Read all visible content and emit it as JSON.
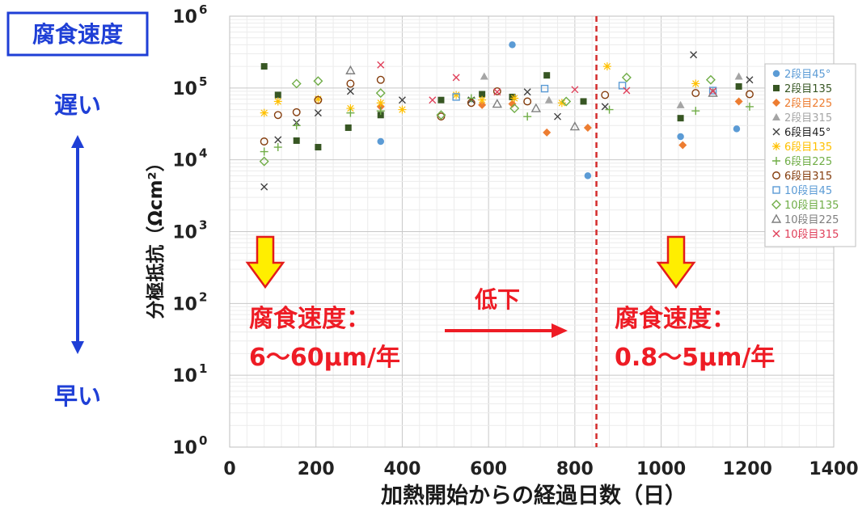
{
  "chart_data": {
    "type": "scatter",
    "title": "",
    "xlabel": "加熱開始からの経過日数（日）",
    "ylabel": "分極抵抗（Ωcm²）",
    "xlim": [
      0,
      1400
    ],
    "ylim": [
      1,
      1000000
    ],
    "y_scale": "log",
    "grid": true,
    "legend_position": "right",
    "x_ticks": [
      "0",
      "200",
      "400",
      "600",
      "800",
      "1000",
      "1200",
      "1400"
    ],
    "y_ticks": [
      {
        "base": "10",
        "exp": "0",
        "value": 1
      },
      {
        "base": "10",
        "exp": "1",
        "value": 10
      },
      {
        "base": "10",
        "exp": "2",
        "value": 100
      },
      {
        "base": "10",
        "exp": "3",
        "value": 1000
      },
      {
        "base": "10",
        "exp": "4",
        "value": 10000
      },
      {
        "base": "10",
        "exp": "5",
        "value": 100000
      },
      {
        "base": "10",
        "exp": "6",
        "value": 1000000
      }
    ],
    "vertical_line_x": 850,
    "series": [
      {
        "name": "2段目45°",
        "marker": "circle-filled",
        "color": "#5b9bd5",
        "points": [
          [
            350,
            18000
          ],
          [
            655,
            400000
          ],
          [
            830,
            6000
          ],
          [
            1045,
            21000
          ],
          [
            1175,
            27000
          ]
        ]
      },
      {
        "name": "2段目135",
        "marker": "square-filled",
        "color": "#375623",
        "points": [
          [
            80,
            200000
          ],
          [
            112,
            80000
          ],
          [
            155,
            18500
          ],
          [
            205,
            15000
          ],
          [
            275,
            28000
          ],
          [
            350,
            42000
          ],
          [
            490,
            68000
          ],
          [
            585,
            82000
          ],
          [
            655,
            75000
          ],
          [
            735,
            150000
          ],
          [
            820,
            65000
          ],
          [
            1045,
            38000
          ],
          [
            1180,
            105000
          ]
        ]
      },
      {
        "name": "2段目225",
        "marker": "diamond-filled",
        "color": "#ed7d31",
        "points": [
          [
            350,
            55000
          ],
          [
            585,
            58000
          ],
          [
            655,
            60000
          ],
          [
            735,
            24000
          ],
          [
            830,
            28000
          ],
          [
            1050,
            16000
          ],
          [
            1180,
            65000
          ]
        ]
      },
      {
        "name": "2段目315",
        "marker": "triangle-filled",
        "color": "#a5a5a5",
        "points": [
          [
            590,
            145000
          ],
          [
            740,
            68000
          ],
          [
            1045,
            58000
          ],
          [
            1180,
            145000
          ]
        ]
      },
      {
        "name": "6段目45°",
        "marker": "x",
        "color": "#404040",
        "points": [
          [
            80,
            4200
          ],
          [
            112,
            19000
          ],
          [
            155,
            33000
          ],
          [
            205,
            45000
          ],
          [
            280,
            90000
          ],
          [
            400,
            68000
          ],
          [
            560,
            68000
          ],
          [
            690,
            88000
          ],
          [
            760,
            40000
          ],
          [
            870,
            55000
          ],
          [
            1075,
            290000
          ],
          [
            1205,
            130000
          ]
        ]
      },
      {
        "name": "6段目135",
        "marker": "asterisk",
        "color": "#ffc000",
        "points": [
          [
            80,
            45000
          ],
          [
            112,
            65000
          ],
          [
            205,
            70000
          ],
          [
            280,
            52000
          ],
          [
            350,
            62000
          ],
          [
            400,
            50000
          ],
          [
            525,
            80000
          ],
          [
            585,
            68000
          ],
          [
            660,
            72000
          ],
          [
            770,
            62000
          ],
          [
            875,
            200000
          ],
          [
            1080,
            115000
          ]
        ]
      },
      {
        "name": "6段目225",
        "marker": "plus",
        "color": "#70ad47",
        "points": [
          [
            80,
            13000
          ],
          [
            112,
            15000
          ],
          [
            155,
            30000
          ],
          [
            280,
            45000
          ],
          [
            350,
            48000
          ],
          [
            560,
            72000
          ],
          [
            690,
            40000
          ],
          [
            880,
            50000
          ],
          [
            1080,
            48000
          ],
          [
            1205,
            55000
          ]
        ]
      },
      {
        "name": "6段目315",
        "marker": "circle-open",
        "color": "#843c0c",
        "points": [
          [
            80,
            18000
          ],
          [
            112,
            42000
          ],
          [
            155,
            46000
          ],
          [
            205,
            68000
          ],
          [
            280,
            115000
          ],
          [
            350,
            130000
          ],
          [
            490,
            40000
          ],
          [
            560,
            62000
          ],
          [
            620,
            90000
          ],
          [
            690,
            65000
          ],
          [
            870,
            80000
          ],
          [
            1080,
            85000
          ],
          [
            1205,
            82000
          ]
        ]
      },
      {
        "name": "10段目45",
        "marker": "square-open",
        "color": "#5b9bd5",
        "points": [
          [
            525,
            75000
          ],
          [
            730,
            98000
          ],
          [
            910,
            108000
          ],
          [
            1120,
            92000
          ]
        ]
      },
      {
        "name": "10段目135",
        "marker": "diamond-open",
        "color": "#70ad47",
        "points": [
          [
            80,
            9500
          ],
          [
            155,
            115000
          ],
          [
            205,
            125000
          ],
          [
            350,
            85000
          ],
          [
            490,
            42000
          ],
          [
            660,
            52000
          ],
          [
            780,
            65000
          ],
          [
            920,
            140000
          ],
          [
            1115,
            130000
          ]
        ]
      },
      {
        "name": "10段目225",
        "marker": "triangle-open",
        "color": "#7f7f7f",
        "points": [
          [
            280,
            175000
          ],
          [
            620,
            60000
          ],
          [
            710,
            52000
          ],
          [
            800,
            29000
          ],
          [
            1120,
            85000
          ]
        ]
      },
      {
        "name": "10段目315",
        "marker": "x",
        "color": "#e0405a",
        "points": [
          [
            350,
            210000
          ],
          [
            470,
            68000
          ],
          [
            525,
            140000
          ],
          [
            620,
            88000
          ],
          [
            800,
            95000
          ],
          [
            920,
            92000
          ],
          [
            1120,
            90000
          ]
        ]
      }
    ]
  },
  "annotations": {
    "corrosion_box_label": "腐食速度",
    "slow_label": "遅い",
    "fast_label": "早い",
    "left_rate_title": "腐食速度：",
    "left_rate_value": "6～60μm/年",
    "right_rate_title": "腐食速度：",
    "right_rate_value": "0.8～5μm/年",
    "decrease_label": "低下"
  },
  "colors": {
    "annotation_red": "#ee1c25",
    "annotation_blue": "#1f3fd6",
    "arrow_yellow": "#ffee00",
    "dashed_line": "#d42c2c"
  }
}
